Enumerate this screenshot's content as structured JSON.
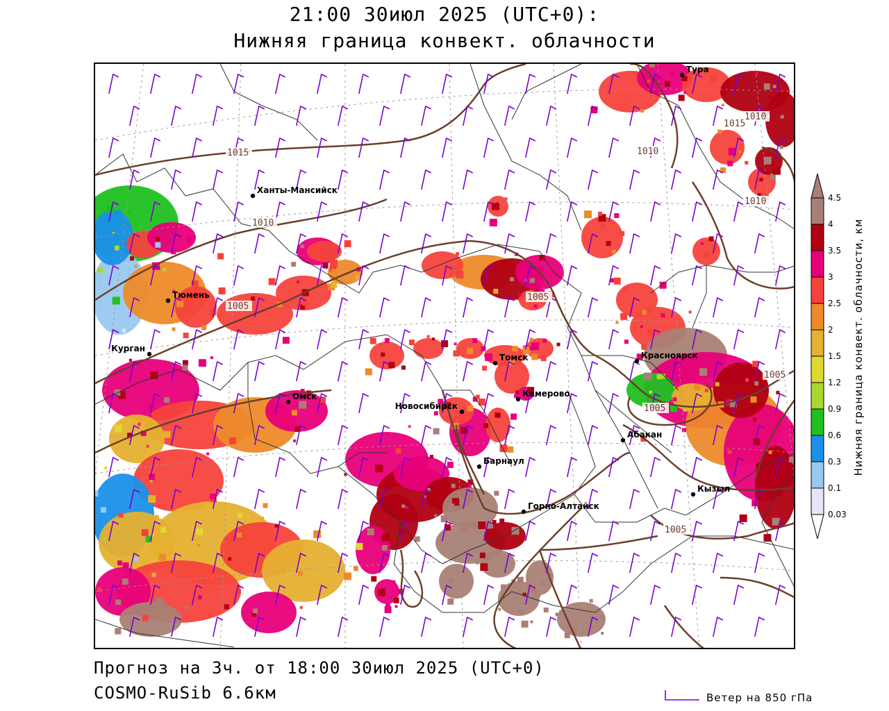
{
  "header": {
    "title_line1": "21:00 30июл 2025 (UTC+0):",
    "title_line2": "Нижняя граница конвект. облачности"
  },
  "footer": {
    "forecast": "Прогноз на 3ч. от 18:00 30июл 2025 (UTC+0)",
    "model": "COSMO-RuSib 6.6км",
    "wind_legend": "Ветер на 850 гПа"
  },
  "colorbar": {
    "label": "Нижняя граница конвект. облачности, км",
    "ticks": [
      "4.5",
      "4",
      "3.5",
      "3",
      "2.5",
      "2",
      "1.5",
      "1.2",
      "0.9",
      "0.6",
      "0.3",
      "0.1",
      "0.03"
    ],
    "colors": [
      "#a97f75",
      "#b00012",
      "#e8007a",
      "#f5433c",
      "#ee8a2a",
      "#e6b030",
      "#dfd830",
      "#a8d830",
      "#20c020",
      "#1a90e8",
      "#99c8f0",
      "#e8e4f8"
    ]
  },
  "cities": [
    {
      "name": "Тура"
    },
    {
      "name": "Ханты-Мансийск"
    },
    {
      "name": "Тюмень"
    },
    {
      "name": "Курган"
    },
    {
      "name": "Омск"
    },
    {
      "name": "Новосибирск"
    },
    {
      "name": "Томск"
    },
    {
      "name": "Кемерово"
    },
    {
      "name": "Красноярск"
    },
    {
      "name": "Абакан"
    },
    {
      "name": "Барнаул"
    },
    {
      "name": "Горно-Алтайск"
    },
    {
      "name": "Кызыл"
    }
  ],
  "isobars": [
    {
      "label": "1015"
    },
    {
      "label": "1010"
    },
    {
      "label": "1005"
    },
    {
      "label": "1015"
    },
    {
      "label": "1010"
    },
    {
      "label": "1010"
    },
    {
      "label": "1010"
    },
    {
      "label": "1005"
    },
    {
      "label": "1005"
    },
    {
      "label": "1005"
    },
    {
      "label": "1005"
    }
  ],
  "style": {
    "wind_barb_color": "#7b00d0",
    "isobar_color": "#6b3f2a",
    "border_color": "#333333"
  }
}
